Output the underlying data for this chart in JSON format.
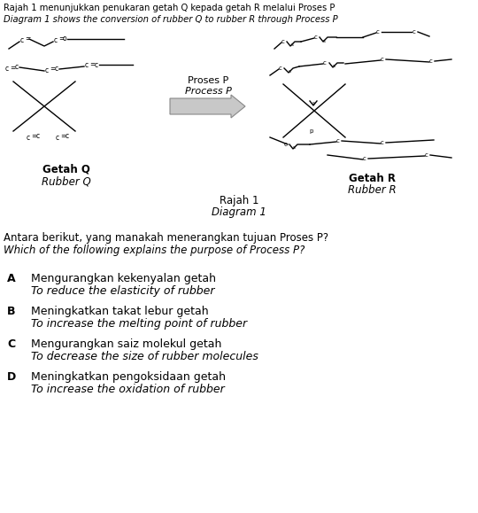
{
  "title_line1": "Rajah 1 menunjukkan penukaran getah Q kepada getah R melalui Proses P",
  "title_line2": "Diagram 1 shows the conversion of rubber Q to rubber R through Process P",
  "proses_p_label1": "Proses P",
  "proses_p_label2": "Process P",
  "getah_q_label1": "Getah Q",
  "getah_q_label2": "Rubber Q",
  "getah_r_label1": "Getah R",
  "getah_r_label2": "Rubber R",
  "rajah_label1": "Rajah 1",
  "rajah_label2": "Diagram 1",
  "question_line1": "Antara berikut, yang manakah menerangkan tujuan Proses P?",
  "question_line2": "Which of the following explains the purpose of Process P?",
  "options": [
    {
      "label": "A",
      "line1": "Mengurangkan kekenyalan getah",
      "line2": "To reduce the elasticity of rubber"
    },
    {
      "label": "B",
      "line1": "Meningkatkan takat lebur getah",
      "line2": "To increase the melting point of rubber"
    },
    {
      "label": "C",
      "line1": "Mengurangkan saiz molekul getah",
      "line2": "To decrease the size of rubber molecules"
    },
    {
      "label": "D",
      "line1": "Meningkatkan pengoksidaan getah",
      "line2": "To increase the oxidation of rubber"
    }
  ],
  "bg_color": "#ffffff",
  "text_color": "#000000"
}
